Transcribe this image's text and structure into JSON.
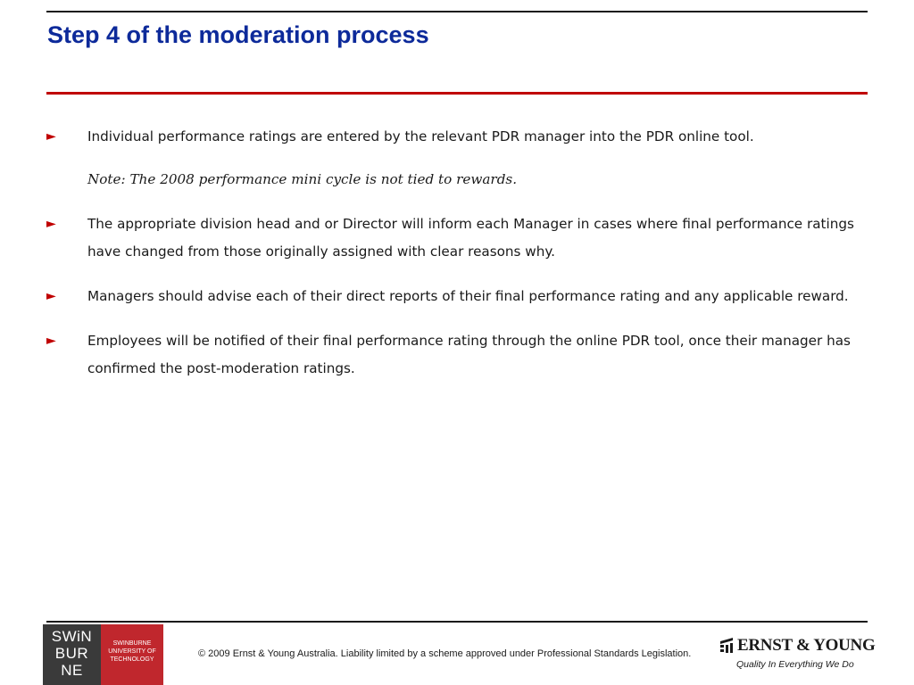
{
  "slide": {
    "title": "Step 4 of the moderation process",
    "bullets": [
      {
        "marker": "►",
        "text": "Individual performance ratings are entered by the relevant PDR manager into the PDR online tool.",
        "note": "Note: The 2008 performance mini cycle is not tied to rewards."
      },
      {
        "marker": "►",
        "text": "The appropriate division head and or Director will inform each Manager in cases where final performance ratings have changed from those originally assigned with clear reasons why."
      },
      {
        "marker": "►",
        "text": "Managers should advise each of their direct reports of their final performance rating and any applicable reward."
      },
      {
        "marker": "►",
        "text": "Employees will be notified of their final performance rating through the online PDR tool, once their manager has confirmed the post-moderation ratings."
      }
    ]
  },
  "footer": {
    "swinburne_logo": {
      "lines": [
        "SWiN",
        "BUR",
        "NE"
      ],
      "caption": [
        "SWINBURNE",
        "UNIVERSITY OF",
        "TECHNOLOGY"
      ]
    },
    "copyright": "© 2009 Ernst & Young Australia. Liability limited by a scheme approved under Professional Standards Legislation.",
    "ey_logo": {
      "name": "ERNST & YOUNG",
      "tagline": "Quality In Everything We Do"
    }
  },
  "colors": {
    "title": "#0d2a9a",
    "accent_red": "#c00000",
    "text": "#1a1a1a"
  }
}
